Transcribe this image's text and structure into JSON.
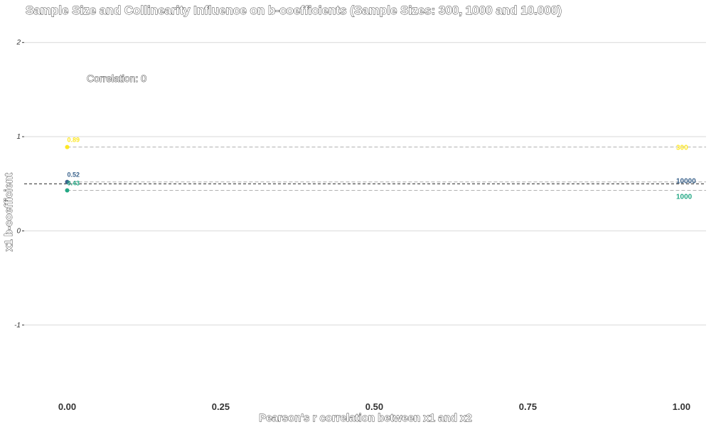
{
  "chart_data": {
    "type": "scatter",
    "title": "Sample Size and Collinearity Influence on b-coefficients (Sample Sizes: 300, 1000 and 10.000)",
    "xlabel": "Pearson's r correlation between x1 and x2",
    "ylabel": "x1 b-coefficient",
    "xlim": [
      -0.07,
      1.04
    ],
    "ylim": [
      -1.78,
      2.3
    ],
    "x_ticks": [
      0.0,
      0.25,
      0.5,
      0.75,
      1.0
    ],
    "x_tick_labels": [
      "0.00",
      "0.25",
      "0.50",
      "0.75",
      "1.00"
    ],
    "y_ticks": [
      -1,
      0,
      1,
      2
    ],
    "y_tick_labels": [
      "-1",
      "0",
      "1",
      "2"
    ],
    "grid": "horizontal",
    "annotation": "Correlation: 0",
    "reference_line": {
      "y": 0.5,
      "style": "dashed",
      "color": "#222222"
    },
    "series": [
      {
        "name": "300",
        "color": "#FDE725",
        "x": [
          0.0
        ],
        "y": [
          0.89
        ],
        "point_labels": [
          "0.89"
        ],
        "mean_line": 0.89
      },
      {
        "name": "10000",
        "color": "#3B638C",
        "x": [
          0.0
        ],
        "y": [
          0.52
        ],
        "point_labels": [
          "0.52"
        ],
        "mean_line": 0.52
      },
      {
        "name": "1000",
        "color": "#22A884",
        "x": [
          0.0
        ],
        "y": [
          0.43
        ],
        "point_labels": [
          "0.43"
        ],
        "mean_line": 0.43
      }
    ]
  }
}
